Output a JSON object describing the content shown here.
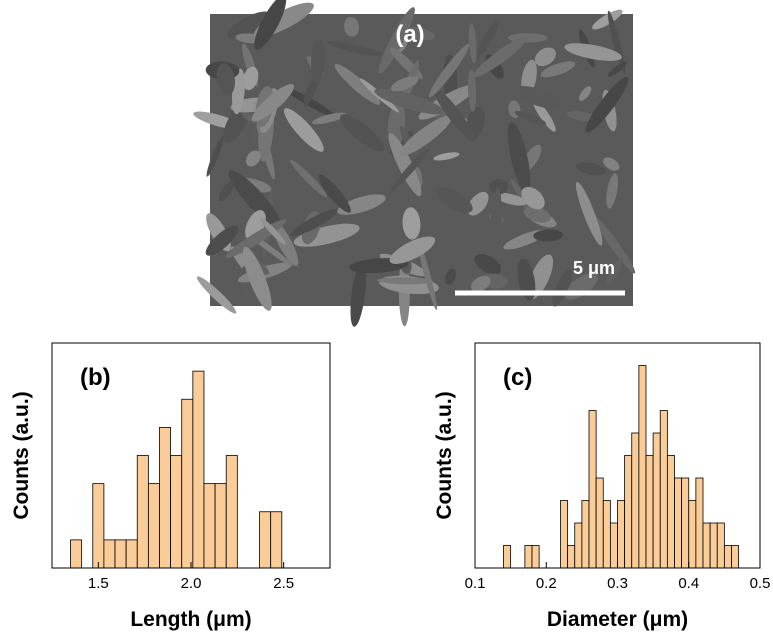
{
  "image": {
    "label": "(a)",
    "scale_label": "5 μm"
  },
  "chart_data": [
    {
      "type": "histogram",
      "annotation": "(b)",
      "xlabel": "Length (μm)",
      "ylabel": "Counts (a.u.)",
      "bins": [
        1.35,
        1.41,
        1.47,
        1.53,
        1.59,
        1.65,
        1.71,
        1.77,
        1.83,
        1.89,
        1.95,
        2.01,
        2.07,
        2.13,
        2.19,
        2.25,
        2.31,
        2.37,
        2.43,
        2.49
      ],
      "values": [
        1,
        0,
        3,
        1,
        1,
        1,
        4,
        3,
        5,
        4,
        6,
        7,
        3,
        3,
        4,
        0,
        0,
        2,
        2
      ],
      "color": "#f9cc98",
      "xlim": [
        1.25,
        2.75
      ],
      "xticks": [
        1.5,
        {
          "value": 2,
          "label": "2.0"
        },
        2.5
      ],
      "ylim": [
        0,
        8
      ]
    },
    {
      "type": "histogram",
      "annotation": "(c)",
      "xlabel": "Diameter (μm)",
      "ylabel": "Counts (a.u.)",
      "bins": [
        0.13,
        0.14,
        0.15,
        0.16,
        0.17,
        0.18,
        0.19,
        0.2,
        0.21,
        0.22,
        0.23,
        0.24,
        0.25,
        0.26,
        0.27,
        0.28,
        0.29,
        0.3,
        0.31,
        0.32,
        0.33,
        0.34,
        0.35,
        0.36,
        0.37,
        0.38,
        0.39,
        0.4,
        0.41,
        0.42,
        0.43,
        0.44,
        0.45,
        0.46,
        0.47
      ],
      "values": [
        0,
        1,
        0,
        0,
        1,
        1,
        0,
        0,
        0,
        3,
        1,
        2,
        3,
        7,
        4,
        3,
        2,
        3,
        5,
        6,
        9,
        5,
        6,
        7,
        5,
        4,
        4,
        3,
        4,
        2,
        2,
        2,
        1,
        1
      ],
      "color": "#f9cc98",
      "xlim": [
        0.1,
        0.5
      ],
      "xticks": [
        0.1,
        0.2,
        0.3,
        0.4,
        0.5
      ],
      "ylim": [
        0,
        10
      ]
    }
  ]
}
